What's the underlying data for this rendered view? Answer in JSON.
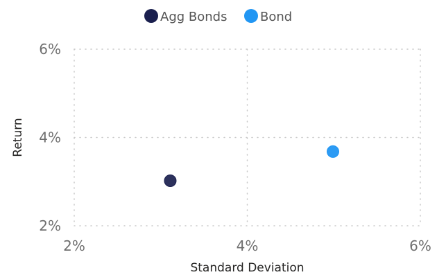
{
  "chart_data": {
    "type": "scatter",
    "xlabel": "Standard Deviation",
    "ylabel": "Return",
    "xlim": [
      0.02,
      0.06
    ],
    "ylim": [
      0.02,
      0.06
    ],
    "xticks": [
      0.02,
      0.04,
      0.06
    ],
    "yticks": [
      0.02,
      0.04,
      0.06
    ],
    "xtick_labels": [
      "2%",
      "4%",
      "6%"
    ],
    "ytick_labels": [
      "2%",
      "4%",
      "6%"
    ],
    "grid": true,
    "legend_position": "top-center",
    "series": [
      {
        "name": "Agg Bonds",
        "color": "#1a1f4e",
        "x": [
          0.0311
        ],
        "y": [
          0.0302
        ]
      },
      {
        "name": "Bond",
        "color": "#2196f3",
        "x": [
          0.0499
        ],
        "y": [
          0.0368
        ]
      }
    ]
  }
}
